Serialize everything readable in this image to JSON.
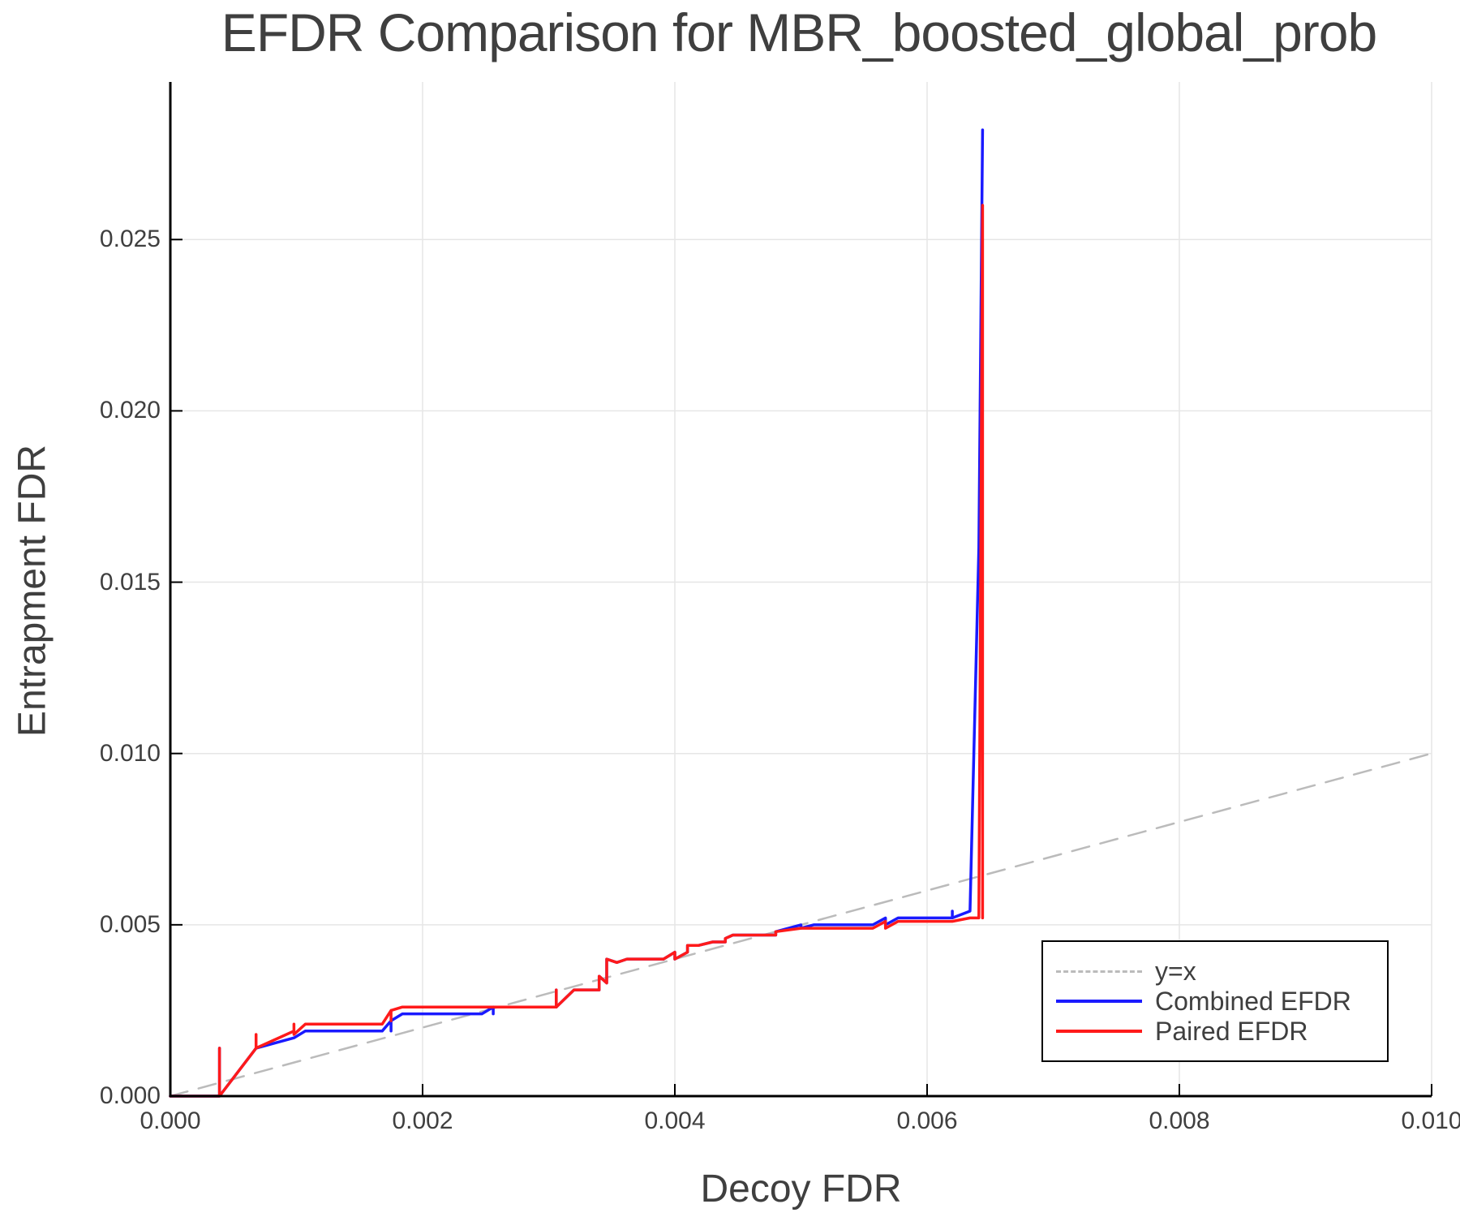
{
  "chart_data": {
    "type": "line",
    "title": "EFDR Comparison for MBR_boosted_global_prob",
    "xlabel": "Decoy FDR",
    "ylabel": "Entrapment FDR",
    "xlim": [
      0.0,
      0.01
    ],
    "ylim": [
      0.0,
      0.0296
    ],
    "grid": true,
    "legend_position": "bottom-right",
    "x_ticks": [
      "0.000",
      "0.002",
      "0.004",
      "0.006",
      "0.008",
      "0.010"
    ],
    "y_ticks": [
      "0.000",
      "0.005",
      "0.010",
      "0.015",
      "0.020",
      "0.025"
    ],
    "series": [
      {
        "name": "y=x",
        "color": "#bbbbbb",
        "style": "dashed",
        "x": [
          0.0,
          0.01
        ],
        "y": [
          0.0,
          0.01
        ]
      },
      {
        "name": "Combined EFDR",
        "color": "#1a1aff",
        "style": "solid",
        "x": [
          0.0,
          0.00039,
          0.00039,
          0.00039,
          0.00068,
          0.00068,
          0.00098,
          0.00098,
          0.00107,
          0.00168,
          0.00175,
          0.00175,
          0.00175,
          0.00184,
          0.00247,
          0.00256,
          0.00256,
          0.00256,
          0.00306,
          0.00306,
          0.00306,
          0.0032,
          0.0034,
          0.0034,
          0.00346,
          0.00346,
          0.00354,
          0.00362,
          0.00391,
          0.004,
          0.004,
          0.0041,
          0.0041,
          0.00419,
          0.0043,
          0.0044,
          0.0044,
          0.00446,
          0.0048,
          0.0048,
          0.005,
          0.005,
          0.0051,
          0.00557,
          0.00567,
          0.00567,
          0.00577,
          0.0062,
          0.0062,
          0.0062,
          0.00634,
          0.00641,
          0.00641,
          0.00644
        ],
        "y": [
          0.0,
          0.0,
          0.0014,
          0.0,
          0.0014,
          0.0014,
          0.0017,
          0.0017,
          0.0019,
          0.0019,
          0.0022,
          0.0019,
          0.0022,
          0.0024,
          0.0024,
          0.0026,
          0.0024,
          0.0026,
          0.0026,
          0.0031,
          0.0026,
          0.0031,
          0.0031,
          0.0035,
          0.0033,
          0.004,
          0.0039,
          0.004,
          0.004,
          0.0042,
          0.004,
          0.0042,
          0.0044,
          0.0044,
          0.0045,
          0.0045,
          0.0046,
          0.0047,
          0.0047,
          0.0048,
          0.005,
          0.0049,
          0.005,
          0.005,
          0.0052,
          0.005,
          0.0052,
          0.0052,
          0.0054,
          0.0052,
          0.0054,
          0.016,
          0.016,
          0.0282
        ]
      },
      {
        "name": "Paired EFDR",
        "color": "#ff1a1a",
        "style": "solid",
        "x": [
          0.0,
          0.00039,
          0.00039,
          0.00039,
          0.00068,
          0.00068,
          0.00068,
          0.00098,
          0.00098,
          0.00098,
          0.00107,
          0.00168,
          0.00175,
          0.00175,
          0.00175,
          0.00184,
          0.00247,
          0.00256,
          0.00306,
          0.00306,
          0.00306,
          0.0032,
          0.0034,
          0.0034,
          0.00346,
          0.00346,
          0.00354,
          0.00362,
          0.00391,
          0.004,
          0.004,
          0.0041,
          0.0041,
          0.00419,
          0.0043,
          0.0044,
          0.0044,
          0.00446,
          0.0048,
          0.0048,
          0.005,
          0.0051,
          0.00557,
          0.00567,
          0.00567,
          0.00577,
          0.0062,
          0.00634,
          0.00641,
          0.00644,
          0.00644
        ],
        "y": [
          0.0,
          0.0,
          0.0014,
          0.0,
          0.0014,
          0.0018,
          0.0014,
          0.0019,
          0.0021,
          0.0018,
          0.0021,
          0.0021,
          0.0025,
          0.0022,
          0.0025,
          0.0026,
          0.0026,
          0.0026,
          0.0026,
          0.0031,
          0.0026,
          0.0031,
          0.0031,
          0.0035,
          0.0033,
          0.004,
          0.0039,
          0.004,
          0.004,
          0.0042,
          0.004,
          0.0042,
          0.0044,
          0.0044,
          0.0045,
          0.0045,
          0.0046,
          0.0047,
          0.0047,
          0.0048,
          0.0049,
          0.0049,
          0.0049,
          0.0051,
          0.0049,
          0.0051,
          0.0051,
          0.0052,
          0.0052,
          0.026,
          0.0052
        ]
      }
    ]
  },
  "legend": {
    "items": [
      {
        "label": "y=x",
        "color": "#bbbbbb",
        "style": "dashed"
      },
      {
        "label": "Combined EFDR",
        "color": "#1a1aff",
        "style": "solid"
      },
      {
        "label": "Paired EFDR",
        "color": "#ff1a1a",
        "style": "solid"
      }
    ]
  }
}
